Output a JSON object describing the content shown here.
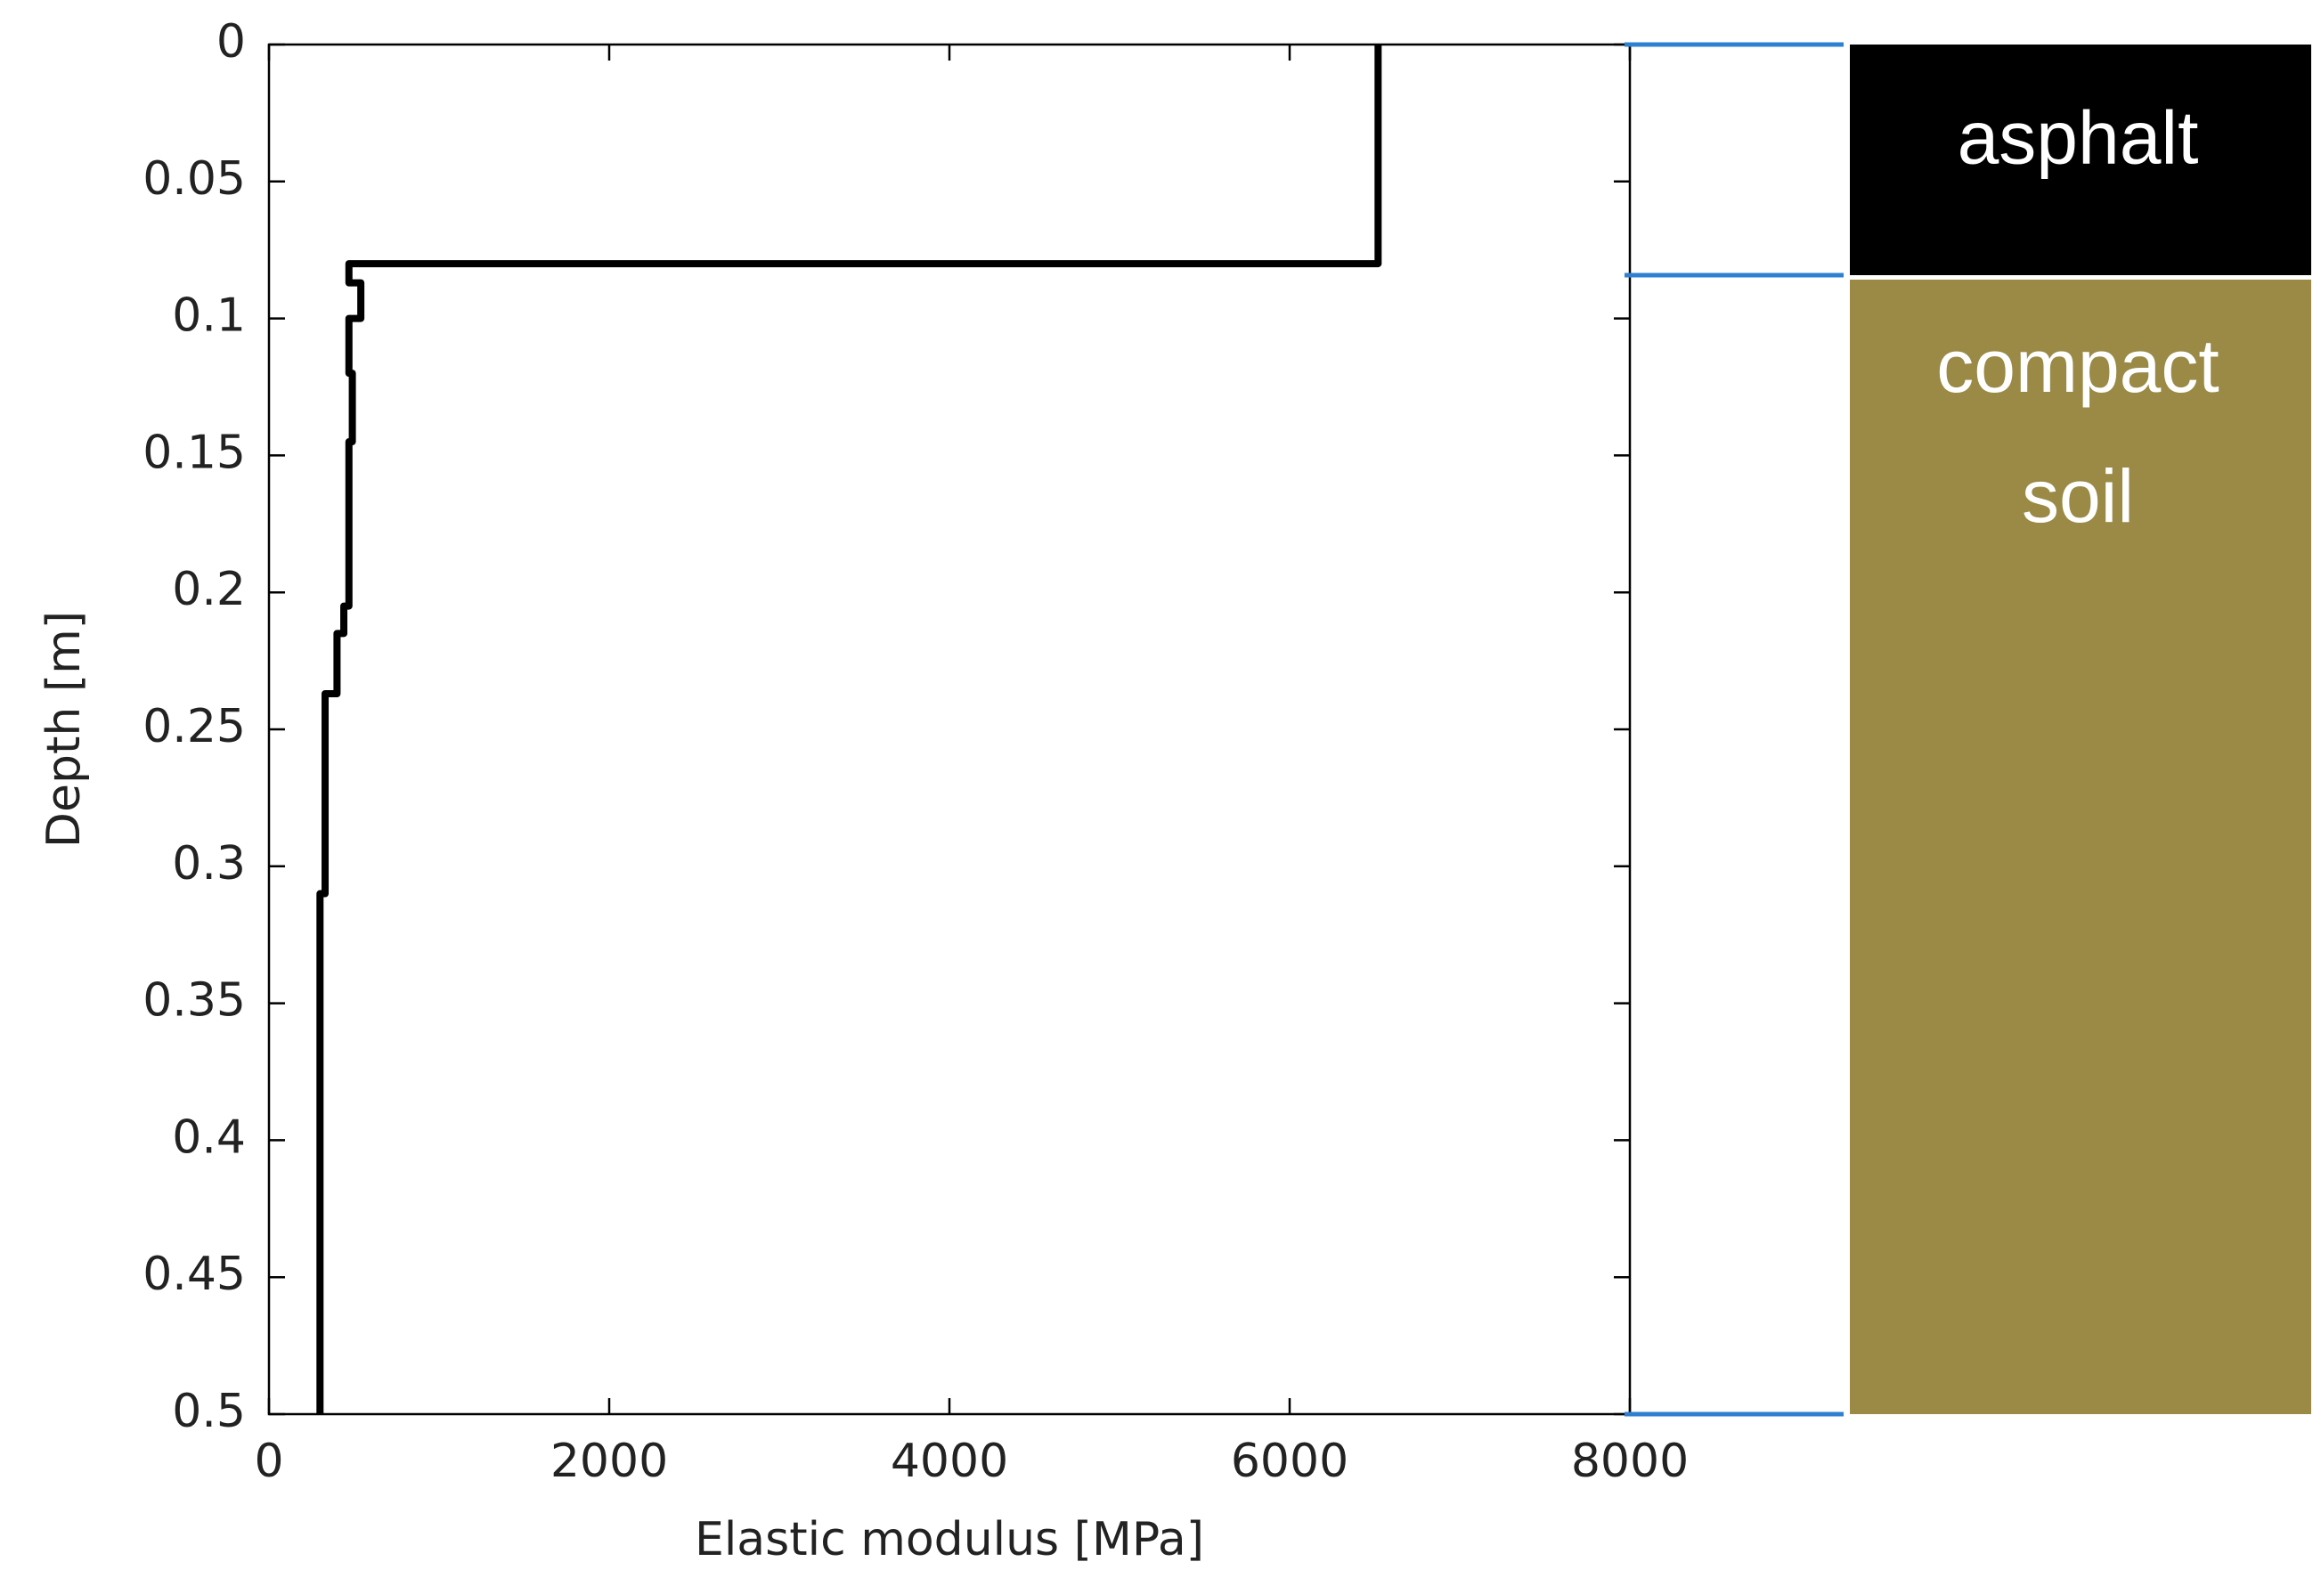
{
  "chart_data": {
    "type": "line",
    "xlabel": "Elastic modulus [MPa]",
    "ylabel": "Depth [m]",
    "xlim": [
      0,
      8000
    ],
    "xticks": [
      0,
      2000,
      4000,
      6000,
      8000
    ],
    "ylim": [
      0.5,
      0
    ],
    "yticks": [
      0,
      0.05,
      0.1,
      0.15,
      0.2,
      0.25,
      0.3,
      0.35,
      0.4,
      0.45,
      0.5
    ],
    "series": [
      {
        "color": "#000000",
        "x": [
          6520,
          6520,
          470,
          470,
          540,
          540,
          470,
          470,
          490,
          490,
          470,
          470,
          440,
          440,
          400,
          400,
          330,
          330,
          300,
          300
        ],
        "values": [
          0,
          0.08,
          0.08,
          0.087,
          0.087,
          0.1,
          0.1,
          0.12,
          0.12,
          0.145,
          0.145,
          0.205,
          0.205,
          0.215,
          0.215,
          0.237,
          0.237,
          0.31,
          0.31,
          0.5
        ]
      }
    ],
    "layers": [
      {
        "lines": [
          "asphalt"
        ],
        "color": "#000000"
      },
      {
        "lines": [
          "compact",
          "soil"
        ],
        "color": "#9a8a46"
      }
    ]
  }
}
